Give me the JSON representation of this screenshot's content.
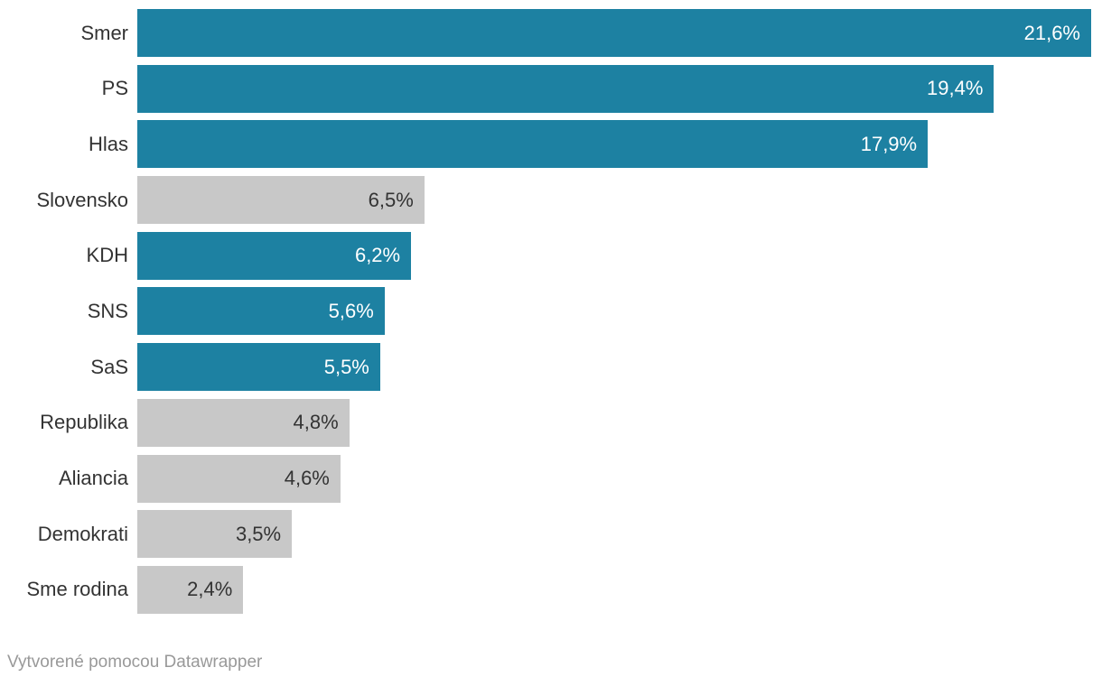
{
  "chart_data": {
    "type": "bar",
    "orientation": "horizontal",
    "title": "",
    "xlabel": "",
    "ylabel": "",
    "xlim": [
      0,
      21.6
    ],
    "grid": false,
    "legend": false,
    "categories": [
      "Smer",
      "PS",
      "Hlas",
      "Slovensko",
      "KDH",
      "SNS",
      "SaS",
      "Republika",
      "Aliancia",
      "Demokrati",
      "Sme rodina"
    ],
    "values": [
      21.6,
      19.4,
      17.9,
      6.5,
      6.2,
      5.6,
      5.5,
      4.8,
      4.6,
      3.5,
      2.4
    ],
    "value_labels": [
      "21,6%",
      "19,4%",
      "17,9%",
      "6,5%",
      "6,2%",
      "5,6%",
      "5,5%",
      "4,8%",
      "4,6%",
      "3,5%",
      "2,4%"
    ],
    "highlighted": [
      true,
      true,
      true,
      false,
      true,
      true,
      true,
      false,
      false,
      false,
      false
    ]
  },
  "colors": {
    "bar_highlight": "#1d81a2",
    "bar_muted": "#c8c8c8",
    "category_label": "#333333",
    "value_on_highlight": "#ffffff",
    "value_on_muted": "#333333",
    "footer_text": "#999999",
    "background": "#ffffff"
  },
  "footer": {
    "text": "Vytvorené pomocou Datawrapper"
  }
}
